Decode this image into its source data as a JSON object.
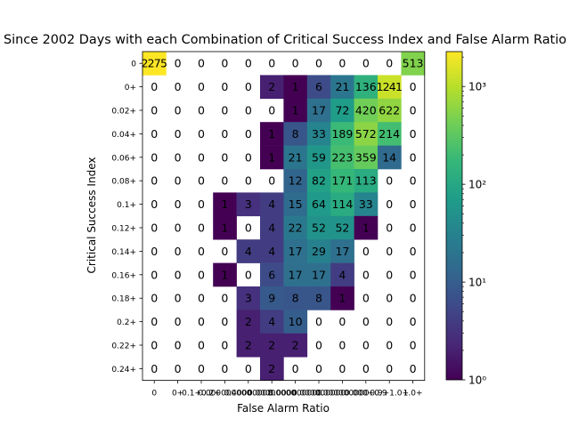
{
  "chart_data": {
    "type": "heatmap",
    "title": "Since 2002 Days with each Combination of Critical Success Index and False Alarm Ratio",
    "xlabel": "False Alarm Ratio",
    "ylabel": "Critical Success Index",
    "x_categories": [
      "0",
      "0+",
      "0.1+",
      "0.1+",
      "0.2+",
      "0.2+",
      "0.4+",
      "0.5+",
      "0.6+",
      "0.7+",
      "0.8+",
      "1.0+"
    ],
    "x_tick_labels": [
      "0",
      "0+",
      "0.1+0.2+",
      "0.000000000",
      "0.40000008",
      "0.00000000",
      "0.000000000",
      "0.000000000",
      "0.000000000",
      "0.000+0.9",
      "0.9+1.0+",
      "1.0+"
    ],
    "y_categories": [
      "0",
      "0+",
      "0.02+",
      "0.04+",
      "0.06+",
      "0.08+",
      "0.1+",
      "0.12+",
      "0.14+",
      "0.16+",
      "0.18+",
      "0.2+",
      "0.22+",
      "0.24+"
    ],
    "values": [
      [
        2275,
        0,
        0,
        0,
        0,
        0,
        0,
        0,
        0,
        0,
        0,
        513
      ],
      [
        0,
        0,
        0,
        0,
        0,
        2,
        1,
        6,
        21,
        136,
        1241,
        0
      ],
      [
        0,
        0,
        0,
        0,
        0,
        0,
        1,
        17,
        72,
        420,
        622,
        0
      ],
      [
        0,
        0,
        0,
        0,
        0,
        1,
        8,
        33,
        189,
        572,
        214,
        0
      ],
      [
        0,
        0,
        0,
        0,
        0,
        1,
        21,
        59,
        223,
        359,
        14,
        0
      ],
      [
        0,
        0,
        0,
        0,
        0,
        0,
        12,
        82,
        171,
        113,
        0,
        0
      ],
      [
        0,
        0,
        0,
        1,
        3,
        4,
        15,
        64,
        114,
        33,
        0,
        0
      ],
      [
        0,
        0,
        0,
        1,
        0,
        4,
        22,
        52,
        52,
        1,
        0,
        0
      ],
      [
        0,
        0,
        0,
        0,
        4,
        4,
        17,
        29,
        17,
        0,
        0,
        0
      ],
      [
        0,
        0,
        0,
        1,
        0,
        6,
        17,
        17,
        4,
        0,
        0,
        0
      ],
      [
        0,
        0,
        0,
        0,
        3,
        9,
        8,
        8,
        1,
        0,
        0,
        0
      ],
      [
        0,
        0,
        0,
        0,
        2,
        4,
        10,
        0,
        0,
        0,
        0,
        0
      ],
      [
        0,
        0,
        0,
        0,
        2,
        2,
        2,
        0,
        0,
        0,
        0,
        0
      ],
      [
        0,
        0,
        0,
        0,
        0,
        2,
        0,
        0,
        0,
        0,
        0,
        0
      ]
    ],
    "zero_cells": "blank",
    "colorbar": {
      "scale": "log",
      "colormap": "viridis",
      "range": [
        1,
        2275
      ],
      "tick_labels": [
        "10⁰",
        "10¹",
        "10²",
        "10³"
      ]
    }
  }
}
